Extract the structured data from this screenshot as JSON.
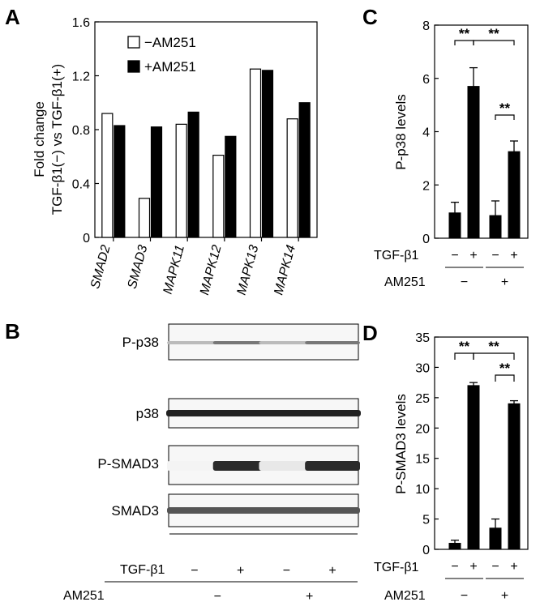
{
  "panel_letters": {
    "A": "A",
    "B": "B",
    "C": "C",
    "D": "D"
  },
  "panel_A": {
    "ylabel_line1": "Fold change",
    "ylabel_line2": "TGF-β1(−) vs TGF-β1(+)",
    "legend": [
      "−AM251",
      "+AM251"
    ]
  },
  "panel_B": {
    "blots": [
      "P-p38",
      "p38",
      "P-SMAD3",
      "SMAD3"
    ],
    "tgf_label": "TGF-β1",
    "am_label": "AM251",
    "tgf_signs": [
      "−",
      "+",
      "−",
      "+"
    ],
    "am_signs": [
      "−",
      "+"
    ]
  },
  "panel_C": {
    "ylabel": "P-p38 levels",
    "tgf_label": "TGF-β1",
    "am_label": "AM251",
    "tgf_signs": [
      "−",
      "+",
      "−",
      "+"
    ],
    "am_signs": [
      "−",
      "+"
    ],
    "sig": [
      "**",
      "**",
      "**"
    ]
  },
  "panel_D": {
    "ylabel": "P-SMAD3 levels",
    "tgf_label": "TGF-β1",
    "am_label": "AM251",
    "tgf_signs": [
      "−",
      "+",
      "−",
      "+"
    ],
    "am_signs": [
      "−",
      "+"
    ],
    "sig": [
      "**",
      "**",
      "**"
    ]
  },
  "chart_data": [
    {
      "type": "bar",
      "categories": [
        "SMAD2",
        "SMAD3",
        "MAPK11",
        "MAPK12",
        "MAPK13",
        "MAPK14"
      ],
      "series": [
        {
          "name": "−AM251",
          "values": [
            0.92,
            0.29,
            0.84,
            0.61,
            1.25,
            0.88
          ],
          "color": "#ffffff"
        },
        {
          "name": "+AM251",
          "values": [
            0.83,
            0.82,
            0.93,
            0.75,
            1.24,
            1.0
          ],
          "color": "#000000"
        }
      ],
      "ylabel": "Fold change TGF-β1(−) vs TGF-β1(+)",
      "ylim": [
        0,
        1.6
      ],
      "yticks": [
        0,
        0.4,
        0.8,
        1.2,
        1.6
      ],
      "grid": false,
      "legend": "top-left"
    },
    {
      "type": "bar",
      "categories": [
        "TGF-β1 −, AM251 −",
        "TGF-β1 +, AM251 −",
        "TGF-β1 −, AM251 +",
        "TGF-β1 +, AM251 +"
      ],
      "values": [
        0.95,
        5.7,
        0.85,
        3.25
      ],
      "errors": [
        0.4,
        0.7,
        0.55,
        0.4
      ],
      "ylabel": "P-p38 levels",
      "ylim": [
        0,
        8
      ],
      "yticks": [
        0,
        2,
        4,
        6,
        8
      ],
      "grid": false
    },
    {
      "type": "bar",
      "categories": [
        "TGF-β1 −, AM251 −",
        "TGF-β1 +, AM251 −",
        "TGF-β1 −, AM251 +",
        "TGF-β1 +, AM251 +"
      ],
      "values": [
        1.0,
        27.0,
        3.5,
        24.0
      ],
      "errors": [
        0.5,
        0.5,
        1.5,
        0.5
      ],
      "ylabel": "P-SMAD3 levels",
      "ylim": [
        0,
        35
      ],
      "yticks": [
        0,
        5,
        10,
        15,
        20,
        25,
        30,
        35
      ],
      "grid": false
    }
  ]
}
